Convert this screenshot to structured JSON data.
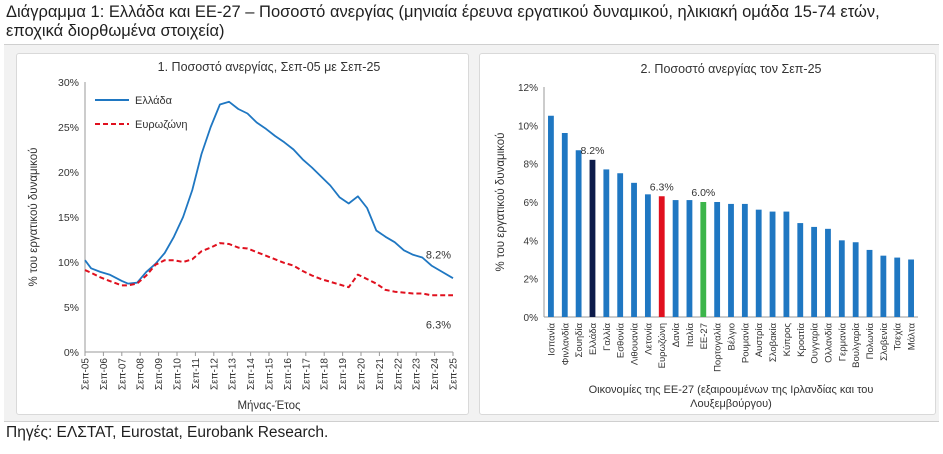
{
  "figure_title": "Διάγραμμα 1: Ελλάδα και ΕΕ-27 – Ποσοστό ανεργίας (μηνιαία έρευνα εργατικού δυναμικού, ηλικιακή ομάδα 15-74 ετών, εποχικά διορθωμένα στοιχεία)",
  "source": "Πηγές: ΕΛΣΤΑΤ, Eurostat, Eurobank Research.",
  "colors": {
    "greece_line": "#1f77c2",
    "euro_line": "#e0101e",
    "bar_default": "#1f77c2",
    "bar_greece": "#0d1b4a",
    "bar_eurozone": "#e0101e",
    "bar_eu27": "#3cb54a"
  },
  "chart_data": [
    {
      "type": "line",
      "title": "1. Ποσοστό ανεργίας, Σεπ-05 με Σεπ-25",
      "xlabel": "Μήνας-Έτος",
      "ylabel": "% του εργατικού δυναμικού",
      "ylim": [
        0,
        30
      ],
      "yticks": [
        "0%",
        "5%",
        "10%",
        "15%",
        "20%",
        "25%",
        "30%"
      ],
      "x_tick_labels": [
        "Σεπ-05",
        "Σεπ-06",
        "Σεπ-07",
        "Σεπ-08",
        "Σεπ-09",
        "Σεπ-10",
        "Σεπ-11",
        "Σεπ-12",
        "Σεπ-13",
        "Σεπ-14",
        "Σεπ-15",
        "Σεπ-16",
        "Σεπ-17",
        "Σεπ-18",
        "Σεπ-19",
        "Σεπ-20",
        "Σεπ-21",
        "Σεπ-22",
        "Σεπ-23",
        "Σεπ-24",
        "Σεπ-25"
      ],
      "x": [
        2005.67,
        2006.0,
        2006.5,
        2007.0,
        2007.67,
        2008.0,
        2008.5,
        2009.0,
        2009.5,
        2010.0,
        2010.5,
        2011.0,
        2011.5,
        2012.0,
        2012.5,
        2013.0,
        2013.5,
        2014.0,
        2014.5,
        2015.0,
        2015.5,
        2016.0,
        2016.5,
        2017.0,
        2017.5,
        2018.0,
        2018.5,
        2019.0,
        2019.5,
        2020.0,
        2020.5,
        2021.0,
        2021.5,
        2022.0,
        2022.5,
        2023.0,
        2023.5,
        2024.0,
        2024.5,
        2025.0,
        2025.67
      ],
      "series": [
        {
          "name": "Ελλάδα",
          "values": [
            10.2,
            9.3,
            8.9,
            8.6,
            7.9,
            7.6,
            7.7,
            8.9,
            9.8,
            11.0,
            12.8,
            15.0,
            18.0,
            22.0,
            25.0,
            27.5,
            27.8,
            27.0,
            26.5,
            25.5,
            24.8,
            24.0,
            23.3,
            22.5,
            21.4,
            20.5,
            19.5,
            18.5,
            17.2,
            16.5,
            17.3,
            16.0,
            13.5,
            12.8,
            12.2,
            11.3,
            10.8,
            10.5,
            9.6,
            9.0,
            8.2
          ]
        },
        {
          "name": "Ευρωζώνη",
          "values": [
            9.1,
            8.8,
            8.3,
            7.9,
            7.4,
            7.4,
            7.6,
            8.5,
            9.7,
            10.2,
            10.2,
            10.0,
            10.3,
            11.2,
            11.6,
            12.1,
            12.0,
            11.6,
            11.5,
            11.1,
            10.7,
            10.3,
            9.9,
            9.6,
            9.0,
            8.5,
            8.1,
            7.8,
            7.5,
            7.2,
            8.6,
            8.1,
            7.6,
            6.9,
            6.7,
            6.6,
            6.5,
            6.5,
            6.3,
            6.3,
            6.3
          ]
        }
      ],
      "annotations": [
        "8.2%",
        "6.3%"
      ],
      "legend": "top-left",
      "grid": false
    },
    {
      "type": "bar",
      "title": "2. Ποσοστό ανεργίας τον Σεπ-25",
      "xlabel": "Οικονομίες της ΕΕ-27 (εξαιρουμένων της Ιρλανδίας και του Λουξεμβούργου)",
      "ylabel": "% του εργατικού δυναμικού",
      "ylim": [
        0,
        12
      ],
      "yticks": [
        "0%",
        "2%",
        "4%",
        "6%",
        "8%",
        "10%",
        "12%"
      ],
      "categories": [
        "Ισπανία",
        "Φινλανδία",
        "Σουηδία",
        "Ελλάδα",
        "Γαλλία",
        "Εσθονία",
        "Λιθουανία",
        "Λετονία",
        "Ευρωζώνη",
        "Δανία",
        "Ιταλία",
        "ΕΕ-27",
        "Πορτογαλία",
        "Βέλγιο",
        "Ρουμανία",
        "Αυστρία",
        "Σλοβακία",
        "Κύπρος",
        "Κροατία",
        "Ουγγαρία",
        "Ολλανδία",
        "Γερμανία",
        "Βουλγαρία",
        "Πολωνία",
        "Σλοβενία",
        "Τσεχία",
        "Μάλτα"
      ],
      "values": [
        10.5,
        9.6,
        8.7,
        8.2,
        7.7,
        7.5,
        7.0,
        6.4,
        6.3,
        6.1,
        6.1,
        6.0,
        6.0,
        5.9,
        5.9,
        5.6,
        5.5,
        5.5,
        4.9,
        4.7,
        4.6,
        4.0,
        3.9,
        3.5,
        3.2,
        3.1,
        3.0
      ],
      "highlight": {
        "Ελλάδα": "8.2%",
        "Ευρωζώνη": "6.3%",
        "ΕΕ-27": "6.0%"
      },
      "grid": false
    }
  ]
}
